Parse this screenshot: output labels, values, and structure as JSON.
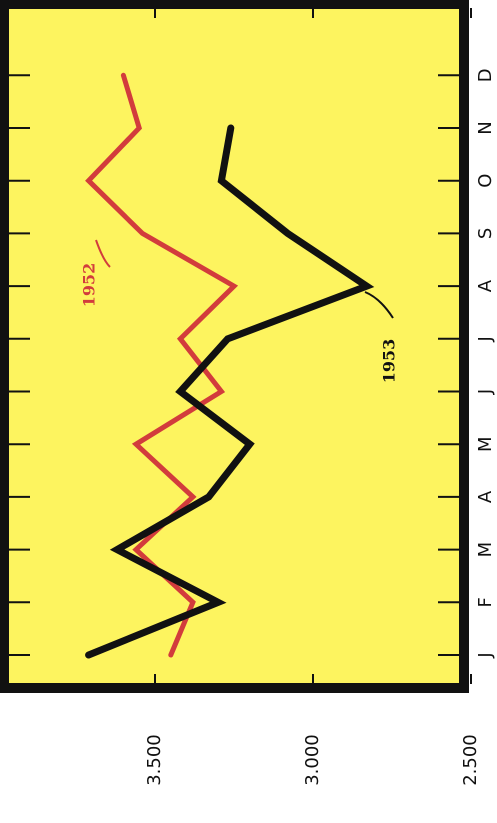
{
  "chart_data": {
    "type": "line",
    "orientation": "rotated-90-ccw",
    "title": "",
    "xlabel": "",
    "ylabel": "",
    "categories": [
      "J",
      "F",
      "M",
      "A",
      "M",
      "J",
      "J",
      "A",
      "S",
      "O",
      "N",
      "D"
    ],
    "yticks": [
      {
        "value": 3500,
        "label": "3.500"
      },
      {
        "value": 3000,
        "label": "3.000"
      },
      {
        "value": 2500,
        "label": "2.500"
      }
    ],
    "ylim": [
      2350,
      3900
    ],
    "series": [
      {
        "name": "1952",
        "color": "#d23c3c",
        "values": [
          3450,
          3380,
          3560,
          3380,
          3560,
          3290,
          3420,
          3250,
          3540,
          3710,
          3550,
          3600
        ]
      },
      {
        "name": "1953",
        "color": "#111111",
        "values": [
          3710,
          3300,
          3620,
          3330,
          3200,
          3420,
          3270,
          2830,
          3080,
          3290,
          3260,
          null
        ]
      }
    ],
    "background": "#fdf45f",
    "grid": false,
    "legend": "direct labels"
  }
}
